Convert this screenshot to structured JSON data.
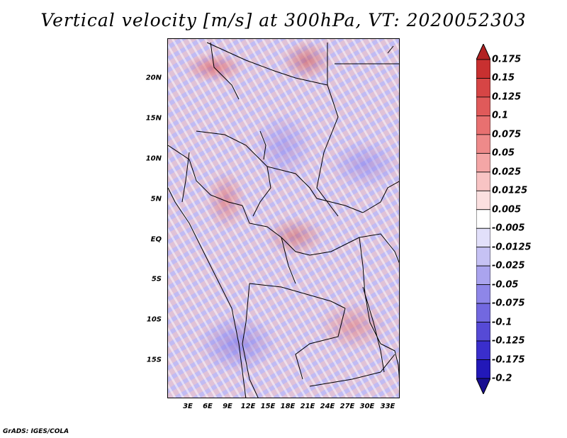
{
  "title": "Vertical velocity [m/s] at 300hPa, VT: 2020052303",
  "credit": "GrADS: IGES/COLA",
  "map": {
    "lat_labels": [
      "20N",
      "15N",
      "10N",
      "5N",
      "EQ",
      "5S",
      "10S",
      "15S"
    ],
    "lon_labels": [
      "3E",
      "6E",
      "9E",
      "12E",
      "15E",
      "18E",
      "21E",
      "24E",
      "27E",
      "30E",
      "33E"
    ]
  },
  "colorbar": {
    "labels": [
      "0.175",
      "0.15",
      "0.125",
      "0.1",
      "0.075",
      "0.05",
      "0.025",
      "0.0125",
      "0.005",
      "-0.005",
      "-0.0125",
      "-0.025",
      "-0.05",
      "-0.075",
      "-0.1",
      "-0.125",
      "-0.175",
      "-0.2"
    ],
    "colors": [
      "#b22222",
      "#c83030",
      "#d64545",
      "#e05a5a",
      "#e87070",
      "#ee8a8a",
      "#f4a6a6",
      "#f8c4c4",
      "#fbe0e0",
      "#ffffff",
      "#e2e0fa",
      "#c6c2f4",
      "#aaa4ee",
      "#8e86e8",
      "#7268e0",
      "#564ad6",
      "#3a2ecc",
      "#2218b8",
      "#180e90"
    ]
  }
}
